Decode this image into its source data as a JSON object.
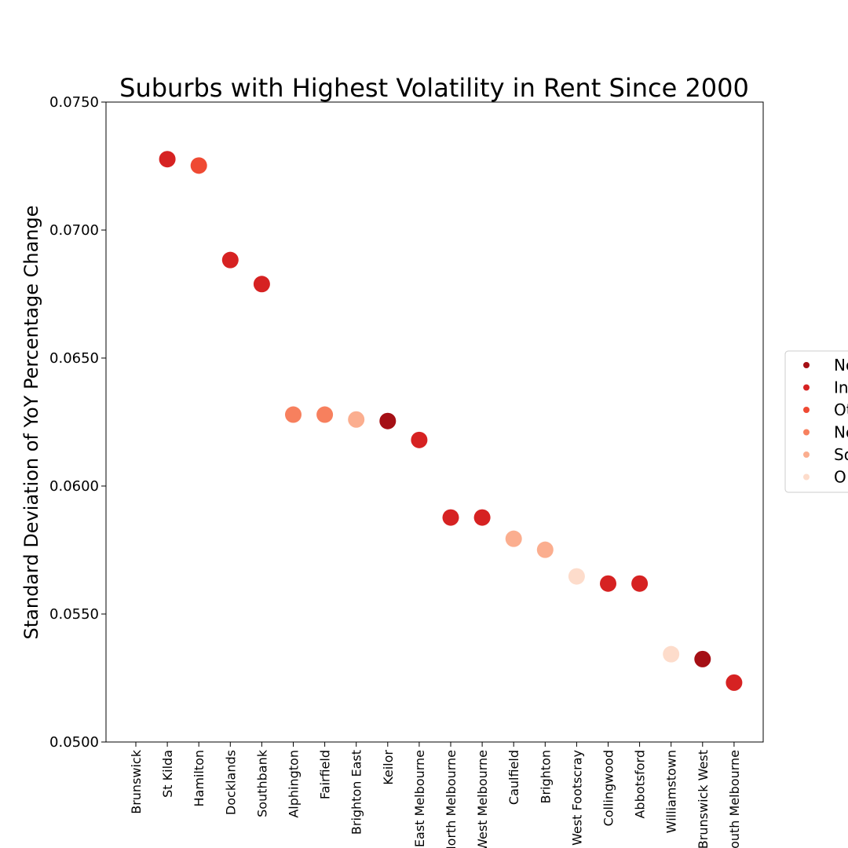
{
  "chart_data": {
    "type": "scatter",
    "title": "Suburbs with Highest Volatility in Rent Since 2000",
    "xlabel": "",
    "ylabel": "Standard Deviation of YoY Percentage Change",
    "ylim": [
      0.05,
      0.075
    ],
    "yticks": [
      "0.0500",
      "0.0550",
      "0.0600",
      "0.0650",
      "0.0700",
      "0.0750"
    ],
    "grid": false,
    "legend_position": "right",
    "legend": [
      {
        "label": "No",
        "color": "#a50f15"
      },
      {
        "label": "In",
        "color": "#d62222"
      },
      {
        "label": "Ot",
        "color": "#ef4a33"
      },
      {
        "label": "No",
        "color": "#f7805e"
      },
      {
        "label": "So",
        "color": "#fbae8f"
      },
      {
        "label": "O",
        "color": "#fddccb"
      }
    ],
    "categories": [
      "Brunswick",
      "St Kilda",
      "Hamilton",
      "Docklands",
      "Southbank",
      "Alphington",
      "Fairfield",
      "Brighton East",
      "Keilor",
      "East Melbourne",
      "North Melbourne",
      "West Melbourne",
      "Caulfield",
      "Brighton",
      "West Footscray",
      "Collingwood",
      "Abbotsford",
      "Williamstown",
      "Brunswick West",
      "South Melbourne"
    ],
    "points": [
      {
        "x": "St Kilda",
        "y": 0.07277,
        "color": "#d62222"
      },
      {
        "x": "Hamilton",
        "y": 0.07252,
        "color": "#ef4a33"
      },
      {
        "x": "Docklands",
        "y": 0.06883,
        "color": "#d62222"
      },
      {
        "x": "Southbank",
        "y": 0.06789,
        "color": "#d62222"
      },
      {
        "x": "Alphington",
        "y": 0.06279,
        "color": "#f7805e"
      },
      {
        "x": "Fairfield",
        "y": 0.06279,
        "color": "#f7805e"
      },
      {
        "x": "Brighton East",
        "y": 0.0626,
        "color": "#fbae8f"
      },
      {
        "x": "Keilor",
        "y": 0.06254,
        "color": "#a50f15"
      },
      {
        "x": "East Melbourne",
        "y": 0.0618,
        "color": "#d62222"
      },
      {
        "x": "North Melbourne",
        "y": 0.05877,
        "color": "#d62222"
      },
      {
        "x": "West Melbourne",
        "y": 0.05877,
        "color": "#d62222"
      },
      {
        "x": "Caulfield",
        "y": 0.05794,
        "color": "#fbae8f"
      },
      {
        "x": "Brighton",
        "y": 0.05751,
        "color": "#fbae8f"
      },
      {
        "x": "West Footscray",
        "y": 0.05647,
        "color": "#fddccb"
      },
      {
        "x": "Collingwood",
        "y": 0.05619,
        "color": "#d62222"
      },
      {
        "x": "Abbotsford",
        "y": 0.05619,
        "color": "#d62222"
      },
      {
        "x": "Williamstown",
        "y": 0.05343,
        "color": "#fddccb"
      },
      {
        "x": "Brunswick West",
        "y": 0.05324,
        "color": "#a50f15"
      },
      {
        "x": "South Melbourne",
        "y": 0.05232,
        "color": "#d62222"
      }
    ]
  }
}
